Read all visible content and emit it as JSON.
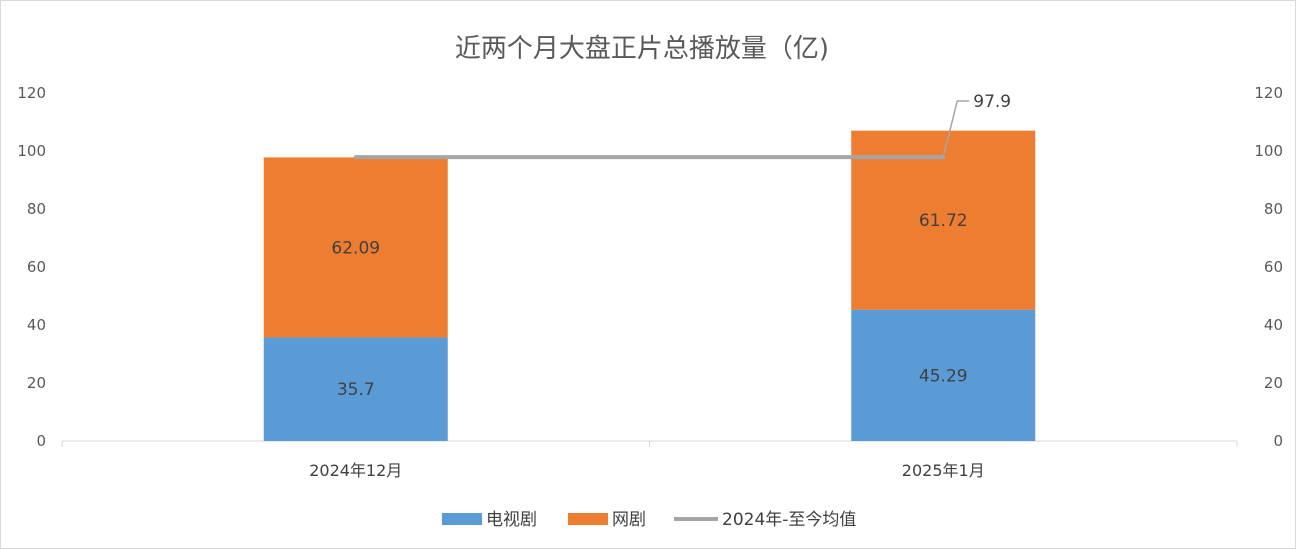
{
  "chart_data": {
    "type": "bar",
    "stacked": true,
    "title": "近两个月大盘正片总播放量（亿)",
    "categories": [
      "2024年12月",
      "2025年1月"
    ],
    "series": [
      {
        "name": "电视剧",
        "type": "bar",
        "values": [
          35.7,
          45.29
        ],
        "color": "#5b9bd5"
      },
      {
        "name": "网剧",
        "type": "bar",
        "values": [
          62.09,
          61.72
        ],
        "color": "#ed7d31"
      },
      {
        "name": "2024年-至今均值",
        "type": "line",
        "values": [
          97.9,
          97.9
        ],
        "color": "#a5a5a5",
        "label": "97.9"
      }
    ],
    "ylim": [
      0,
      120
    ],
    "y_ticks": [
      "0",
      "20",
      "40",
      "60",
      "80",
      "100",
      "120"
    ],
    "y2_ticks": [
      "0",
      "20",
      "40",
      "60",
      "80",
      "100",
      "120"
    ],
    "legend_position": "bottom",
    "grid": false
  }
}
